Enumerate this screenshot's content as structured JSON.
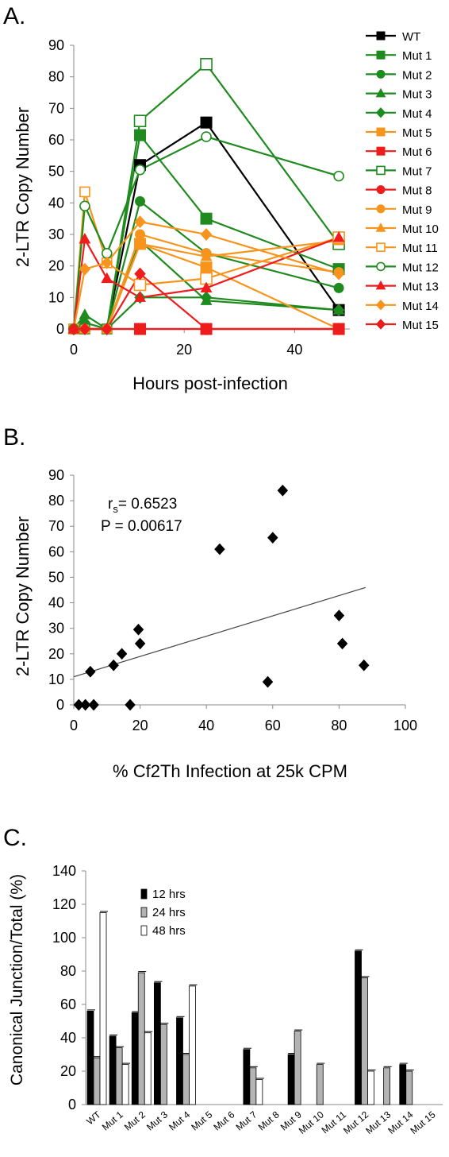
{
  "chart_data": [
    {
      "panel": "A.",
      "type": "line",
      "xlabel": "Hours post-infection",
      "ylabel": "2-LTR Copy Number",
      "xlim": [
        0,
        50
      ],
      "ylim": [
        0,
        90
      ],
      "xticks": [
        0,
        20,
        40
      ],
      "yticks": [
        0,
        10,
        20,
        30,
        40,
        50,
        60,
        70,
        80,
        90
      ],
      "x": [
        0,
        2,
        6,
        12,
        24,
        48
      ],
      "legend_position": "right",
      "series": [
        {
          "name": "WT",
          "color": "#000000",
          "marker": "square-filled",
          "values": [
            0,
            0,
            0,
            52,
            65.5,
            6
          ]
        },
        {
          "name": "Mut 1",
          "color": "#1f8b1f",
          "marker": "square-filled",
          "values": [
            0,
            0,
            0,
            61.5,
            35,
            19
          ]
        },
        {
          "name": "Mut 2",
          "color": "#1f8b1f",
          "marker": "circle-filled",
          "values": [
            0,
            0,
            0,
            40.5,
            24,
            13
          ]
        },
        {
          "name": "Mut 3",
          "color": "#1f8b1f",
          "marker": "triangle-filled",
          "values": [
            0,
            4.5,
            0,
            28,
            9,
            6
          ]
        },
        {
          "name": "Mut 4",
          "color": "#1f8b1f",
          "marker": "diamond-filled",
          "values": [
            0,
            2,
            0,
            10,
            10,
            6
          ]
        },
        {
          "name": "Mut 5",
          "color": "#f7941d",
          "marker": "square-filled",
          "values": [
            0,
            0,
            0,
            27,
            19.5,
            0
          ]
        },
        {
          "name": "Mut 6",
          "color": "#ee1c1c",
          "marker": "square-filled",
          "values": [
            0,
            0,
            0,
            0,
            0,
            0
          ]
        },
        {
          "name": "Mut 7",
          "color": "#1f8b1f",
          "marker": "square-open",
          "values": [
            0,
            0,
            0,
            66,
            84,
            27
          ]
        },
        {
          "name": "Mut 8",
          "color": "#ee1c1c",
          "marker": "circle-filled",
          "values": [
            0,
            0,
            0,
            0,
            0,
            0
          ]
        },
        {
          "name": "Mut 9",
          "color": "#f7941d",
          "marker": "circle-filled",
          "values": [
            0,
            0,
            0,
            30,
            24,
            18
          ]
        },
        {
          "name": "Mut 10",
          "color": "#f7941d",
          "marker": "triangle-filled",
          "values": [
            0,
            0,
            0,
            27,
            23,
            28
          ]
        },
        {
          "name": "Mut 11",
          "color": "#f7941d",
          "marker": "square-open",
          "values": [
            0,
            43.5,
            21,
            14,
            16,
            29
          ]
        },
        {
          "name": "Mut 12",
          "color": "#1f8b1f",
          "marker": "circle-open",
          "values": [
            0,
            39,
            24,
            50.5,
            61,
            48.5
          ]
        },
        {
          "name": "Mut 13",
          "color": "#ee1c1c",
          "marker": "triangle-filled",
          "values": [
            0,
            28.5,
            16,
            10,
            13,
            29
          ]
        },
        {
          "name": "Mut 14",
          "color": "#f7941d",
          "marker": "diamond-filled",
          "values": [
            0,
            19,
            21,
            34,
            30,
            17.5
          ]
        },
        {
          "name": "Mut 15",
          "color": "#ee1c1c",
          "marker": "diamond-filled",
          "values": [
            0,
            0,
            0,
            17.5,
            0,
            0
          ]
        }
      ]
    },
    {
      "panel": "B.",
      "type": "scatter",
      "xlabel": "% Cf2Th Infection at 25k CPM",
      "ylabel": "2-LTR Copy Number",
      "xlim": [
        0,
        100
      ],
      "ylim": [
        0,
        90
      ],
      "xticks": [
        0,
        20,
        40,
        60,
        80,
        100
      ],
      "yticks": [
        0,
        10,
        20,
        30,
        40,
        50,
        60,
        70,
        80,
        90
      ],
      "annotation_rs_label": "r",
      "annotation_rs_sub": "s",
      "annotation_rs_value": "= 0.6523",
      "annotation_p": "P = 0.00617",
      "points": [
        {
          "x": 1.5,
          "y": 0
        },
        {
          "x": 3.5,
          "y": 0
        },
        {
          "x": 6,
          "y": 0
        },
        {
          "x": 17,
          "y": 0
        },
        {
          "x": 5,
          "y": 13
        },
        {
          "x": 12,
          "y": 15.5
        },
        {
          "x": 14.5,
          "y": 20
        },
        {
          "x": 20,
          "y": 24
        },
        {
          "x": 19.5,
          "y": 29.5
        },
        {
          "x": 44,
          "y": 61
        },
        {
          "x": 58.5,
          "y": 9
        },
        {
          "x": 60,
          "y": 65.5
        },
        {
          "x": 63,
          "y": 84
        },
        {
          "x": 80,
          "y": 35
        },
        {
          "x": 81,
          "y": 24
        },
        {
          "x": 87.5,
          "y": 15.5
        }
      ],
      "trendline": {
        "x": [
          0,
          88
        ],
        "y": [
          11,
          46
        ]
      }
    },
    {
      "panel": "C.",
      "type": "bar",
      "ylabel": "Canonical Junction/Total (%)",
      "ylim": [
        0,
        140
      ],
      "yticks": [
        0,
        20,
        40,
        60,
        80,
        100,
        120,
        140
      ],
      "legend_position": "top-left",
      "categories": [
        "WT",
        "Mut 1",
        "Mut 2",
        "Mut 3",
        "Mut 4",
        "Mut 5",
        "Mut 6",
        "Mut 7",
        "Mut 8",
        "Mut 9",
        "Mut 10",
        "Mut 11",
        "Mut 12",
        "Mut 13",
        "Mut 14",
        "Mut 15"
      ],
      "series": [
        {
          "name": "12 hrs",
          "color": "#000000",
          "values": [
            56,
            41,
            55,
            73,
            52,
            0,
            0,
            33,
            0,
            30,
            0,
            0,
            92,
            0,
            24,
            0
          ]
        },
        {
          "name": "24 hrs",
          "color": "#b3b3b3",
          "values": [
            28,
            34,
            79,
            48,
            30,
            0,
            0,
            22,
            0,
            44,
            24,
            0,
            76,
            22,
            20,
            0
          ]
        },
        {
          "name": "48 hrs",
          "color": "#ffffff",
          "values": [
            115,
            24,
            43,
            0,
            71,
            0,
            0,
            15,
            0,
            0,
            0,
            0,
            20,
            0,
            0,
            0
          ]
        }
      ]
    }
  ]
}
